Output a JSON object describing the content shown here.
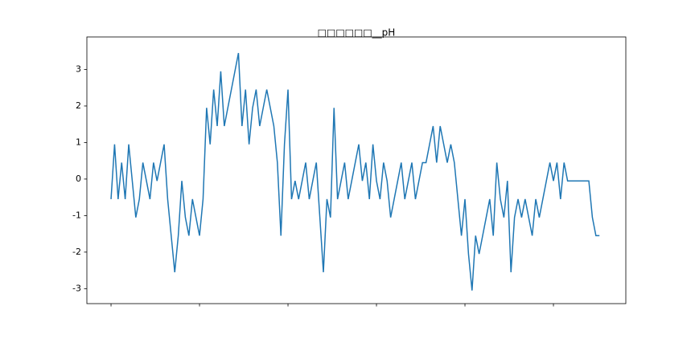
{
  "chart_data": {
    "type": "line",
    "title": "□□□□□□__pH",
    "x": [
      0,
      4,
      8,
      12,
      16,
      20,
      24,
      28,
      32,
      36,
      40,
      44,
      48,
      52,
      56,
      60,
      64,
      68,
      72,
      76,
      80,
      84,
      88,
      92,
      96,
      100,
      104,
      108,
      112,
      116,
      120,
      124,
      128,
      132,
      136,
      140,
      144,
      148,
      152,
      156,
      160,
      164,
      168,
      172,
      176,
      180,
      184,
      188,
      192,
      196,
      200,
      204,
      208,
      212,
      216,
      220,
      224,
      228,
      232,
      236,
      240,
      244,
      248,
      252,
      256,
      260,
      264,
      268,
      272,
      276,
      280,
      284,
      288,
      292,
      296,
      300,
      304,
      308,
      312,
      316,
      320,
      324,
      328,
      332,
      336,
      340,
      344,
      348,
      352,
      356,
      360,
      364,
      368,
      372,
      376,
      380,
      384,
      388,
      392,
      396,
      400,
      404,
      408,
      412,
      416,
      420,
      424,
      428,
      432,
      436,
      440,
      444,
      448,
      452,
      456,
      460,
      464,
      468,
      472,
      476,
      480,
      484,
      488,
      492,
      496,
      500,
      504,
      508,
      512,
      516,
      520,
      524,
      528,
      532,
      536,
      540,
      544,
      548,
      552
    ],
    "series": [
      {
        "color": "#1f77b4",
        "values": [
          -0.55,
          0.95,
          -0.55,
          0.45,
          -0.55,
          0.95,
          -0.05,
          -1.05,
          -0.55,
          0.45,
          -0.05,
          -0.55,
          0.45,
          -0.05,
          0.45,
          0.95,
          -0.55,
          -1.55,
          -2.55,
          -1.55,
          -0.05,
          -1.05,
          -1.55,
          -0.55,
          -1.05,
          -1.55,
          -0.55,
          1.95,
          0.95,
          2.45,
          1.45,
          2.95,
          1.45,
          1.95,
          2.45,
          2.95,
          3.45,
          1.45,
          2.45,
          0.95,
          1.95,
          2.45,
          1.45,
          1.95,
          2.45,
          1.95,
          1.45,
          0.45,
          -1.55,
          0.95,
          2.45,
          -0.55,
          -0.05,
          -0.55,
          -0.05,
          0.45,
          -0.55,
          -0.05,
          0.45,
          -1.05,
          -2.55,
          -0.55,
          -1.05,
          1.95,
          -0.55,
          -0.05,
          0.45,
          -0.55,
          -0.05,
          0.45,
          0.95,
          -0.05,
          0.45,
          -0.55,
          0.95,
          -0.05,
          -0.55,
          0.45,
          -0.05,
          -1.05,
          -0.55,
          -0.05,
          0.45,
          -0.55,
          -0.05,
          0.45,
          -0.55,
          -0.05,
          0.45,
          0.45,
          0.95,
          1.45,
          0.45,
          1.45,
          0.95,
          0.45,
          0.95,
          0.45,
          -0.55,
          -1.55,
          -0.55,
          -2.05,
          -3.05,
          -1.55,
          -2.05,
          -1.55,
          -1.05,
          -0.55,
          -1.55,
          0.45,
          -0.55,
          -1.05,
          -0.05,
          -2.55,
          -1.05,
          -0.55,
          -1.05,
          -0.55,
          -1.05,
          -1.55,
          -0.55,
          -1.05,
          -0.55,
          -0.05,
          0.45,
          -0.05,
          0.45,
          -0.55,
          0.45,
          -0.05,
          -0.05,
          -0.05,
          -0.05,
          -0.05,
          -0.05,
          -0.05,
          -1.05,
          -1.55,
          -1.55
        ]
      }
    ],
    "xlim": [
      -27.3,
      581.8
    ],
    "xticks": [
      0,
      100,
      200,
      300,
      400,
      500
    ],
    "ylim": [
      -3.41,
      3.89
    ],
    "yticks": [
      -3,
      -2,
      -1,
      0,
      1,
      2,
      3
    ]
  }
}
